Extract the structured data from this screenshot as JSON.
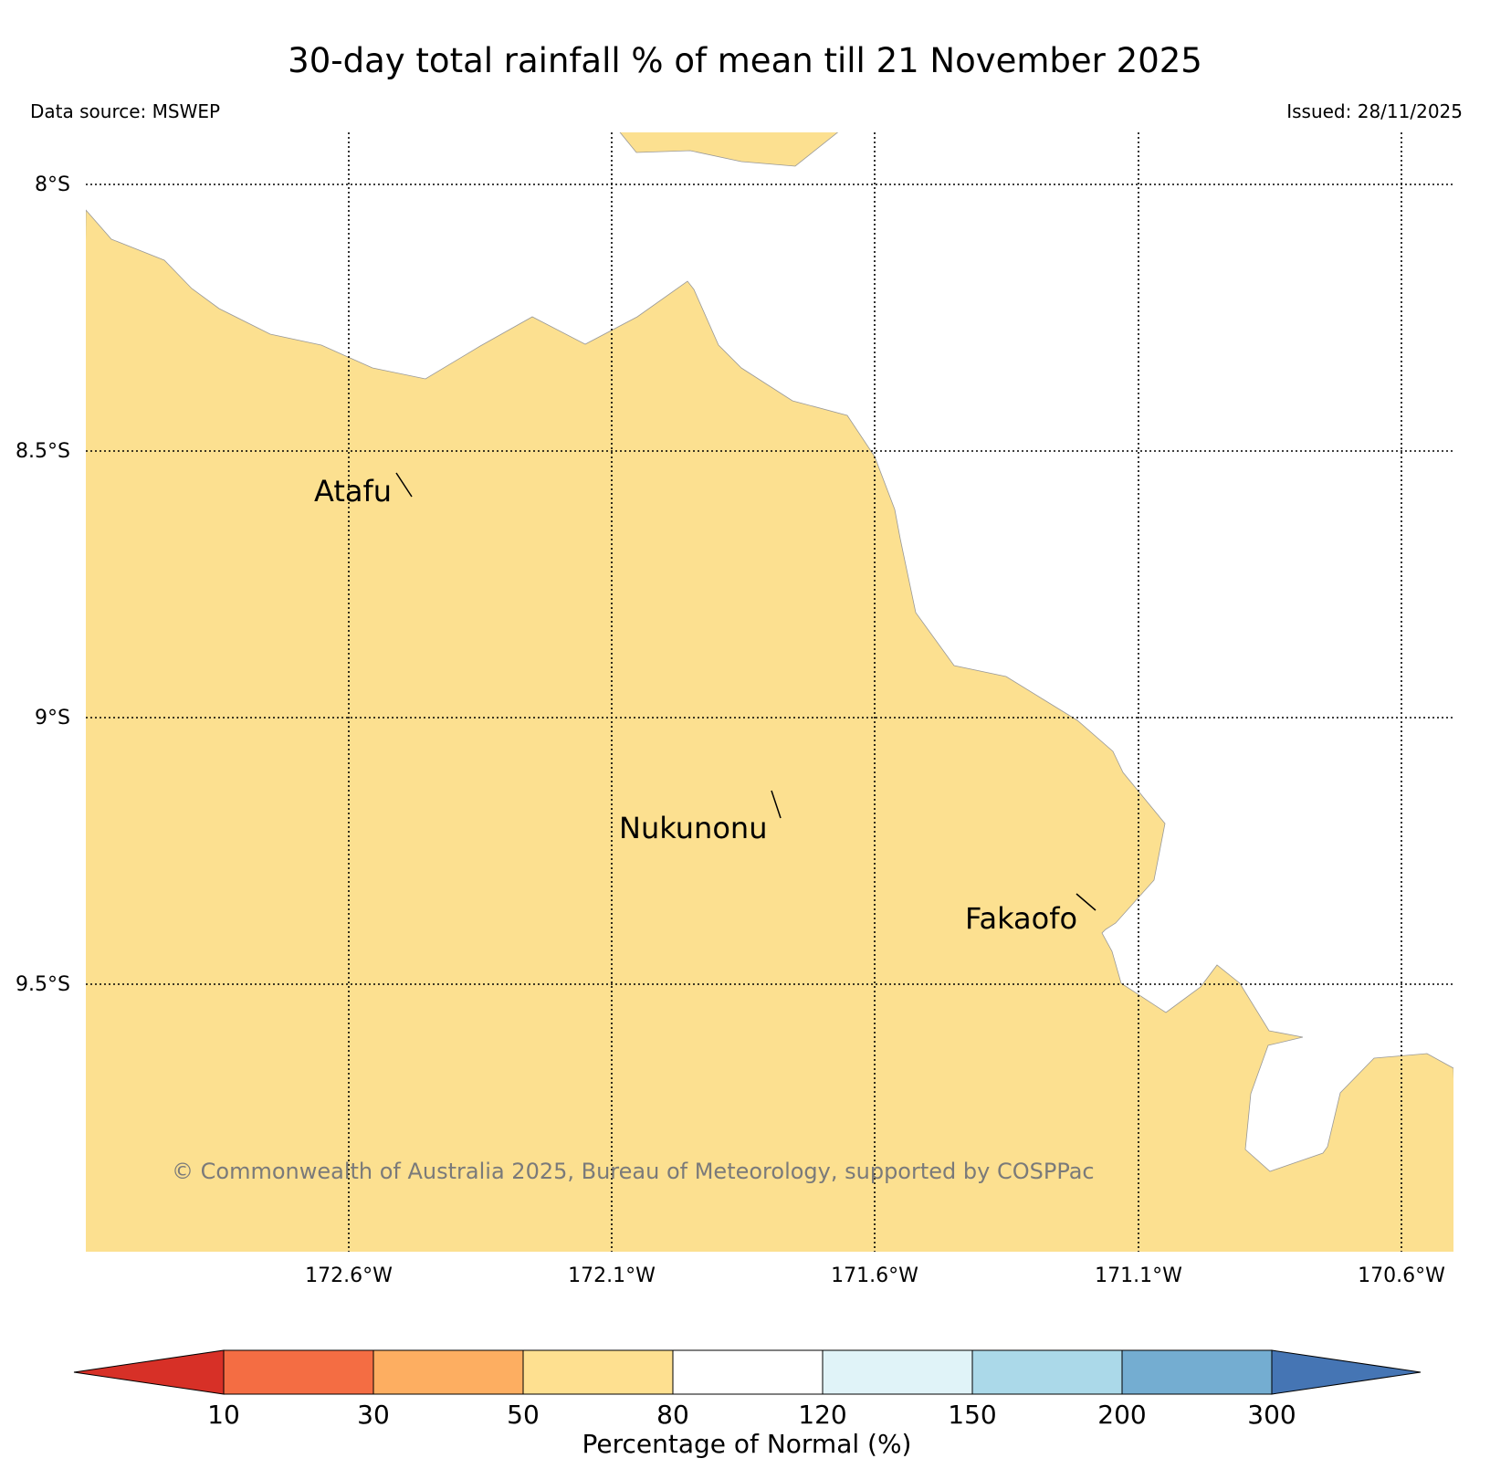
{
  "title": "30-day total rainfall % of mean till 21 November 2025",
  "data_source": "Data source: MSWEP",
  "issued": "Issued: 28/11/2025",
  "copyright": "© Commonwealth of Australia 2025, Bureau of Meteorology, supported by COSPPac",
  "lat_ticks": [
    "8°S",
    "8.5°S",
    "9°S",
    "9.5°S"
  ],
  "lon_ticks": [
    "172.6°W",
    "172.1°W",
    "171.6°W",
    "171.1°W",
    "170.6°W"
  ],
  "places": [
    {
      "name": "Atafu"
    },
    {
      "name": "Nukunonu"
    },
    {
      "name": "Fakaofo"
    }
  ],
  "colorbar": {
    "label": "Percentage of Normal (%)",
    "ticks": [
      "10",
      "30",
      "50",
      "80",
      "120",
      "150",
      "200",
      "300"
    ],
    "colors": [
      "#d73027",
      "#f46d43",
      "#fdae61",
      "#fee090",
      "#ffffff",
      "#e0f3f8",
      "#abd9e9",
      "#74add1",
      "#4575b4"
    ]
  },
  "colors": {
    "land_fill": "#fce090",
    "coast_stroke": "#999999",
    "copyright_text": "#7a7a7a"
  }
}
